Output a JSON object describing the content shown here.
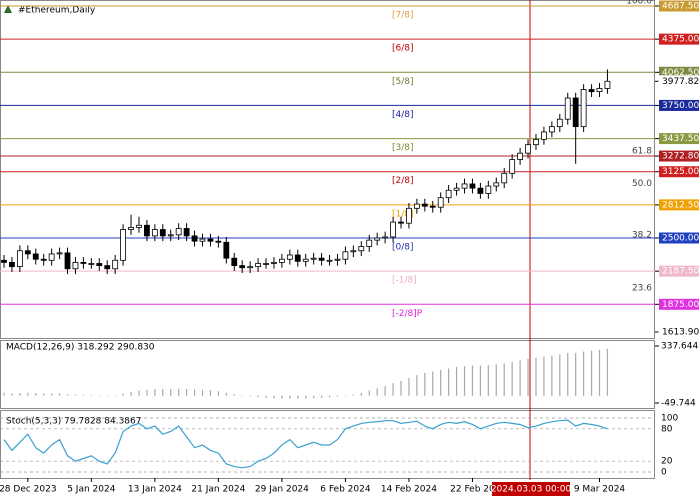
{
  "chart_data": [
    {
      "type": "candlestick",
      "title": "#Ethereum,Daily",
      "crosshair_label": "2024.03.03 00:00",
      "categories": [
        null,
        null,
        null,
        "28 Dec 2023",
        null,
        null,
        null,
        null,
        null,
        null,
        null,
        "5 Jan 2024",
        null,
        null,
        null,
        null,
        null,
        null,
        null,
        "13 Jan 2024",
        null,
        null,
        null,
        null,
        null,
        null,
        null,
        "21 Jan 2024",
        null,
        null,
        null,
        null,
        null,
        null,
        null,
        "29 Jan 2024",
        null,
        null,
        null,
        null,
        null,
        null,
        null,
        "6 Feb 2024",
        null,
        null,
        null,
        null,
        null,
        null,
        null,
        "14 Feb 2024",
        null,
        null,
        null,
        null,
        null,
        null,
        null,
        "22 Feb 20",
        null,
        null,
        null,
        null,
        null,
        null,
        null,
        null,
        null,
        null,
        null,
        null,
        null,
        null,
        null,
        "9 Mar 2024",
        null
      ],
      "open": [
        2290,
        2270,
        2230,
        2380,
        2350,
        2300,
        2290,
        2350,
        2360,
        2210,
        2270,
        2260,
        2260,
        2240,
        2210,
        2290,
        2580,
        2600,
        2620,
        2520,
        2580,
        2520,
        2530,
        2590,
        2520,
        2470,
        2490,
        2470,
        2460,
        2310,
        2240,
        2220,
        2230,
        2260,
        2260,
        2270,
        2300,
        2340,
        2280,
        2300,
        2310,
        2290,
        2290,
        2300,
        2370,
        2380,
        2420,
        2480,
        2500,
        2510,
        2650,
        2640,
        2780,
        2820,
        2800,
        2790,
        2880,
        2950,
        2970,
        3010,
        2970,
        2920,
        2990,
        3020,
        3110,
        3240,
        3300,
        3380,
        3430,
        3500,
        3550,
        3620,
        3820,
        3550,
        3900,
        3880,
        3910
      ],
      "high": [
        2340,
        2320,
        2430,
        2430,
        2400,
        2350,
        2400,
        2410,
        2410,
        2320,
        2320,
        2310,
        2310,
        2290,
        2340,
        2630,
        2720,
        2700,
        2670,
        2630,
        2630,
        2580,
        2640,
        2640,
        2570,
        2540,
        2540,
        2520,
        2510,
        2360,
        2290,
        2280,
        2310,
        2310,
        2320,
        2350,
        2390,
        2390,
        2350,
        2360,
        2360,
        2340,
        2350,
        2420,
        2430,
        2470,
        2530,
        2550,
        2560,
        2700,
        2700,
        2830,
        2870,
        2870,
        2850,
        2930,
        3000,
        3020,
        3060,
        3060,
        3020,
        3040,
        3070,
        3160,
        3290,
        3350,
        3430,
        3480,
        3550,
        3600,
        3670,
        3870,
        3870,
        3950,
        3950,
        3960,
        4090
      ],
      "low": [
        2220,
        2180,
        2180,
        2300,
        2250,
        2240,
        2240,
        2300,
        2160,
        2160,
        2210,
        2210,
        2190,
        2160,
        2160,
        2240,
        2530,
        2550,
        2470,
        2470,
        2470,
        2470,
        2480,
        2470,
        2420,
        2420,
        2420,
        2410,
        2260,
        2190,
        2170,
        2170,
        2180,
        2210,
        2210,
        2220,
        2250,
        2230,
        2230,
        2250,
        2240,
        2240,
        2240,
        2250,
        2320,
        2330,
        2370,
        2430,
        2450,
        2460,
        2590,
        2590,
        2730,
        2750,
        2740,
        2740,
        2830,
        2900,
        2920,
        2920,
        2870,
        2870,
        2940,
        2970,
        3060,
        3190,
        3250,
        3330,
        3380,
        3450,
        3500,
        3570,
        3200,
        3500,
        3830,
        3830,
        3860
      ],
      "close": [
        2270,
        2230,
        2380,
        2350,
        2300,
        2290,
        2350,
        2360,
        2210,
        2270,
        2260,
        2260,
        2240,
        2210,
        2290,
        2580,
        2600,
        2620,
        2520,
        2580,
        2520,
        2530,
        2590,
        2520,
        2470,
        2490,
        2470,
        2460,
        2310,
        2240,
        2220,
        2230,
        2260,
        2260,
        2270,
        2300,
        2340,
        2280,
        2300,
        2310,
        2290,
        2290,
        2300,
        2370,
        2380,
        2420,
        2480,
        2500,
        2510,
        2650,
        2640,
        2780,
        2820,
        2800,
        2790,
        2880,
        2950,
        2970,
        3010,
        2970,
        2920,
        2990,
        3020,
        3110,
        3240,
        3300,
        3380,
        3430,
        3500,
        3550,
        3620,
        3820,
        3550,
        3900,
        3880,
        3910,
        3977.82
      ],
      "up_color": "#ffffff",
      "down_color": "#000000",
      "ylim": [
        1613.9,
        4687.5
      ],
      "yticks": [
        {
          "value": 4687.5,
          "label": "4687.50"
        },
        {
          "value": 4375,
          "label": "4375.00"
        },
        {
          "value": 4062.5,
          "label": "4062.50"
        },
        {
          "value": 3977.82,
          "label": "3977.82"
        },
        {
          "value": 3750,
          "label": "3750.00"
        },
        {
          "value": 3437.5,
          "label": "3437.50"
        },
        {
          "value": 3272.8,
          "label": "3272.80"
        },
        {
          "value": 3125,
          "label": "3125.00"
        },
        {
          "value": 2812.5,
          "label": "2812.50"
        },
        {
          "value": 2500,
          "label": "2500.00"
        },
        {
          "value": 2187.5,
          "label": "2187.50"
        },
        {
          "value": 1875,
          "label": "1875.00"
        },
        {
          "value": 1613.9,
          "label": "1613.90"
        }
      ],
      "ytick_colors": [
        "#c89a30",
        "#d02020",
        "#7a8a40",
        null,
        "#1a2a9a",
        "#8a9a40",
        "#b02020",
        "#d02020",
        "#f0a000",
        "#2040c0",
        "#f0b8c8",
        "#e030e0",
        null
      ],
      "levels": [
        {
          "value": 4687.5,
          "label": "[7/8]"
        },
        {
          "value": 4375,
          "label": "[6/8]"
        },
        {
          "value": 4062.5,
          "label": "[5/8]"
        },
        {
          "value": 3750,
          "label": "[4/8]"
        },
        {
          "value": 3437.5,
          "label": "[3/8]"
        },
        {
          "value": 3125,
          "label": "[2/8]"
        },
        {
          "value": 2812.5,
          "label": "[1/8]"
        },
        {
          "value": 2500,
          "label": "[0/8]"
        },
        {
          "value": 2187.5,
          "label": "[-1/8]"
        },
        {
          "value": 1875,
          "label": "[-2/8]P"
        }
      ],
      "level_colors": [
        "#e0a040",
        "#c00000",
        "#6a7a30",
        "#1a1aa0",
        "#7a8a30",
        "#c00000",
        "#f0a000",
        "#2030b0",
        "#f0b0c0",
        "#e020e0"
      ],
      "fib_levels": [
        {
          "value": 4687.5,
          "label": "100.0"
        },
        {
          "value": 3272.8,
          "label": "61.8"
        },
        {
          "value": 2965,
          "label": "50.0"
        },
        {
          "value": 2480,
          "label": "38.2"
        },
        {
          "value": 1980,
          "label": "23.6"
        }
      ]
    },
    {
      "type": "bar",
      "title": "MACD(12,26,9) 318.292 290.830",
      "color": "#a8a8a8",
      "values": [
        20,
        15,
        18,
        20,
        18,
        15,
        14,
        15,
        10,
        8,
        6,
        5,
        2,
        0,
        2,
        15,
        25,
        35,
        40,
        45,
        45,
        45,
        48,
        46,
        42,
        40,
        38,
        30,
        20,
        10,
        2,
        -5,
        -10,
        -15,
        -18,
        -20,
        -20,
        -22,
        -20,
        -18,
        -15,
        -12,
        -8,
        0,
        8,
        20,
        35,
        50,
        65,
        85,
        100,
        120,
        140,
        155,
        165,
        175,
        185,
        195,
        200,
        205,
        205,
        208,
        212,
        220,
        230,
        240,
        250,
        258,
        265,
        272,
        280,
        290,
        290,
        300,
        305,
        312,
        318.292
      ],
      "ylim": [
        -49.744,
        337.644
      ],
      "yticks": [
        337.644,
        -49.744
      ]
    },
    {
      "type": "line",
      "title": "Stoch(5,3,3) 79.7828 84.3867",
      "color": "#3aa0d0",
      "values": [
        60,
        40,
        55,
        70,
        45,
        35,
        50,
        60,
        30,
        20,
        25,
        30,
        20,
        15,
        35,
        75,
        85,
        90,
        80,
        85,
        70,
        75,
        85,
        65,
        45,
        50,
        40,
        35,
        15,
        10,
        8,
        10,
        20,
        25,
        35,
        50,
        60,
        45,
        50,
        55,
        50,
        50,
        60,
        80,
        85,
        90,
        92,
        93,
        95,
        95,
        90,
        92,
        94,
        85,
        80,
        88,
        92,
        90,
        93,
        88,
        80,
        85,
        90,
        92,
        90,
        88,
        82,
        85,
        90,
        93,
        95,
        96,
        85,
        90,
        88,
        85,
        79.7828
      ],
      "ylim": [
        0,
        100
      ],
      "yticks": [
        100,
        80,
        20,
        0
      ]
    }
  ]
}
